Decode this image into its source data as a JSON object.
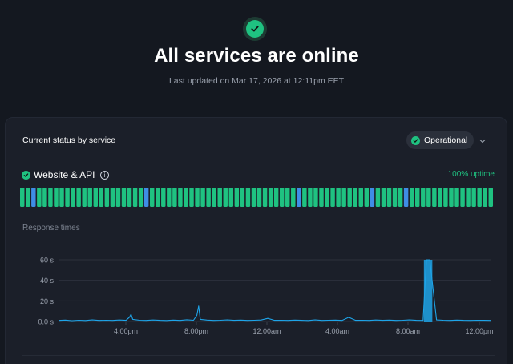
{
  "hero": {
    "title": "All services are online",
    "last_updated": "Last updated on Mar 17, 2026 at 12:11pm EET",
    "icon": "check-circle-icon",
    "accent": "#1fc281"
  },
  "card": {
    "title": "Current status by service",
    "status_filter": {
      "label": "Operational",
      "icon": "check-circle-icon"
    }
  },
  "service": {
    "name": "Website & API",
    "uptime": "100% uptime",
    "uptime_bars": {
      "count": 84,
      "colors": {
        "operational": "#1fc281",
        "minor": "#3f8de6"
      },
      "minor_indices": [
        2,
        22,
        49,
        62,
        68
      ]
    }
  },
  "response_times": {
    "label": "Response times",
    "chart_data": {
      "type": "line",
      "y_ticks": [
        "60 s",
        "40 s",
        "20 s",
        "0.0 s"
      ],
      "x_ticks": [
        "4:00pm",
        "8:00pm",
        "12:00am",
        "4:00am",
        "8:00am",
        "12:00pm"
      ],
      "ylim": [
        0,
        60
      ],
      "color": "#1ea4e8",
      "series": [
        {
          "x": [
            0,
            4,
            8,
            12,
            16,
            20,
            24,
            28,
            32,
            36,
            40,
            42,
            43,
            44,
            48,
            52,
            56,
            60,
            64,
            68,
            72,
            76,
            80,
            82,
            83,
            84,
            88,
            92,
            96,
            100,
            104,
            108,
            112,
            116,
            120,
            124,
            128,
            132,
            136,
            140,
            144,
            148,
            152,
            156,
            160,
            164,
            168,
            172,
            176,
            180,
            184,
            188,
            192,
            196,
            200,
            204,
            208,
            212,
            216,
            218,
            219,
            220,
            224,
            228,
            232,
            236,
            240,
            244,
            248,
            252,
            256
          ],
          "y": [
            1,
            1.3,
            0.8,
            1.2,
            0.9,
            1.5,
            1,
            1.2,
            1,
            1.4,
            1.1,
            4,
            7,
            2,
            1.2,
            1,
            1.4,
            1.1,
            0.9,
            1.3,
            1,
            1.6,
            1.2,
            6,
            15,
            2,
            1.3,
            1,
            1.2,
            1.5,
            1.1,
            1.3,
            1,
            1.2,
            1.4,
            3,
            1.1,
            1.2,
            1,
            1.3,
            1.1,
            0.9,
            1.5,
            1,
            1.2,
            1.3,
            1,
            4,
            1.1,
            1.2,
            1,
            1.4,
            1.1,
            1.3,
            1,
            1.2,
            1.5,
            1.1,
            1,
            60,
            60,
            60,
            1.5,
            1.2,
            1,
            1.3,
            1.1,
            1,
            1.2,
            1.1,
            1
          ]
        }
      ]
    }
  }
}
